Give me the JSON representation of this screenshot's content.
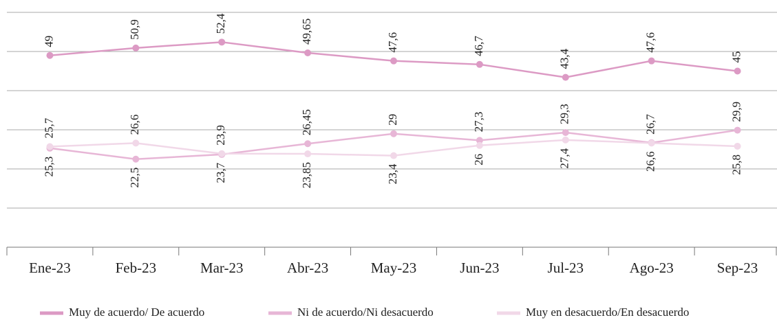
{
  "chart_data": {
    "type": "line",
    "categories": [
      "Ene-23",
      "Feb-23",
      "Mar-23",
      "Abr-23",
      "May-23",
      "Jun-23",
      "Jul-23",
      "Ago-23",
      "Sep-23"
    ],
    "series": [
      {
        "name": "Muy de acuerdo/ De acuerdo",
        "color": "#dc9ac4",
        "values": [
          49,
          50.9,
          52.4,
          49.65,
          47.6,
          46.7,
          43.4,
          47.6,
          45
        ],
        "value_labels": [
          "49",
          "50,9",
          "52,4",
          "49,65",
          "47,6",
          "46,7",
          "43,4",
          "47,6",
          "45"
        ]
      },
      {
        "name": "Ni de acuerdo/Ni desacuerdo",
        "color": "#e7b6d6",
        "values": [
          25.3,
          22.5,
          23.7,
          26.45,
          29,
          27.3,
          29.3,
          26.7,
          29.9
        ],
        "value_labels": [
          "25,3",
          "22,5",
          "23,7",
          "26,45",
          "29",
          "27,3",
          "29,3",
          "26,7",
          "29,9"
        ]
      },
      {
        "name": "Muy en desacuerdo/En desacuerdo",
        "color": "#f1d8e8",
        "values": [
          25.7,
          26.6,
          23.9,
          23.85,
          23.4,
          26,
          27.4,
          26.6,
          25.8
        ],
        "value_labels": [
          "25,7",
          "26,6",
          "23,9",
          "23,85",
          "23,4",
          "26",
          "27,4",
          "26,6",
          "25,8"
        ]
      }
    ],
    "ylim": [
      0,
      60
    ],
    "yticks": [
      0,
      10,
      20,
      30,
      40,
      50,
      60
    ],
    "grid": true,
    "legend": "bottom"
  }
}
